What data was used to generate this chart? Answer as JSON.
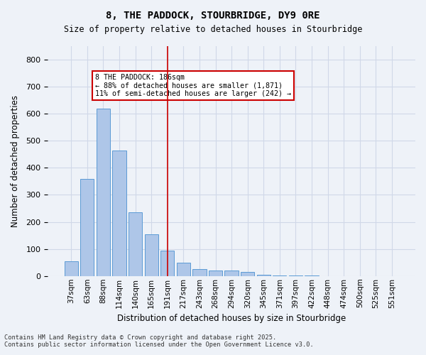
{
  "title_line1": "8, THE PADDOCK, STOURBRIDGE, DY9 0RE",
  "title_line2": "Size of property relative to detached houses in Stourbridge",
  "xlabel": "Distribution of detached houses by size in Stourbridge",
  "ylabel": "Number of detached properties",
  "categories": [
    "37sqm",
    "63sqm",
    "88sqm",
    "114sqm",
    "140sqm",
    "165sqm",
    "191sqm",
    "217sqm",
    "243sqm",
    "268sqm",
    "294sqm",
    "320sqm",
    "345sqm",
    "371sqm",
    "397sqm",
    "422sqm",
    "448sqm",
    "474sqm",
    "500sqm",
    "525sqm",
    "551sqm"
  ],
  "values": [
    55,
    360,
    620,
    465,
    235,
    155,
    95,
    50,
    25,
    20,
    20,
    15,
    5,
    2,
    1,
    1,
    0,
    0,
    0,
    0,
    0
  ],
  "bar_color": "#aec6e8",
  "bar_edge_color": "#5b9bd5",
  "grid_color": "#d0d8e8",
  "background_color": "#eef2f8",
  "vline_x_index": 6,
  "vline_color": "#cc0000",
  "annotation_text": "8 THE PADDOCK: 186sqm\n← 88% of detached houses are smaller (1,871)\n11% of semi-detached houses are larger (242) →",
  "annotation_box_color": "#ffffff",
  "annotation_box_edge": "#cc0000",
  "ylim": [
    0,
    850
  ],
  "yticks": [
    0,
    100,
    200,
    300,
    400,
    500,
    600,
    700,
    800
  ],
  "footer_line1": "Contains HM Land Registry data © Crown copyright and database right 2025.",
  "footer_line2": "Contains public sector information licensed under the Open Government Licence v3.0."
}
